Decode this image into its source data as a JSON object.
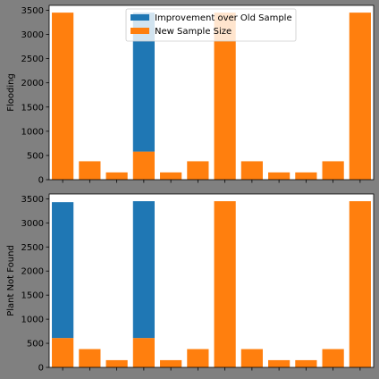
{
  "colors": {
    "improvement": "#1f77b4",
    "new_sample": "#ff7f0e",
    "figure_bg": "#808080",
    "axes_bg": "#ffffff"
  },
  "chart_data": [
    {
      "type": "bar",
      "stacked": true,
      "ylabel": "Flooding",
      "ylim": [
        0,
        3600
      ],
      "yticks": [
        0,
        500,
        1000,
        1500,
        2000,
        2500,
        3000,
        3500
      ],
      "xtick_count": 12,
      "legend": {
        "position": "top-center",
        "entries": [
          "Improvement over Old Sample",
          "New Sample Size"
        ]
      },
      "series": [
        {
          "name": "New Sample Size",
          "values": [
            3450,
            380,
            150,
            580,
            150,
            380,
            3450,
            380,
            150,
            150,
            380,
            3450
          ]
        },
        {
          "name": "Improvement over Old Sample",
          "values": [
            0,
            0,
            0,
            2870,
            0,
            0,
            0,
            0,
            0,
            0,
            0,
            0
          ]
        }
      ]
    },
    {
      "type": "bar",
      "stacked": true,
      "ylabel": "Plant Not Found",
      "ylim": [
        0,
        3600
      ],
      "yticks": [
        0,
        500,
        1000,
        1500,
        2000,
        2500,
        3000,
        3500
      ],
      "xtick_count": 12,
      "series": [
        {
          "name": "New Sample Size",
          "values": [
            610,
            380,
            150,
            610,
            150,
            380,
            3450,
            380,
            150,
            150,
            380,
            3450
          ]
        },
        {
          "name": "Improvement over Old Sample",
          "values": [
            2820,
            0,
            0,
            2840,
            0,
            0,
            0,
            0,
            0,
            0,
            0,
            0
          ]
        }
      ]
    }
  ]
}
